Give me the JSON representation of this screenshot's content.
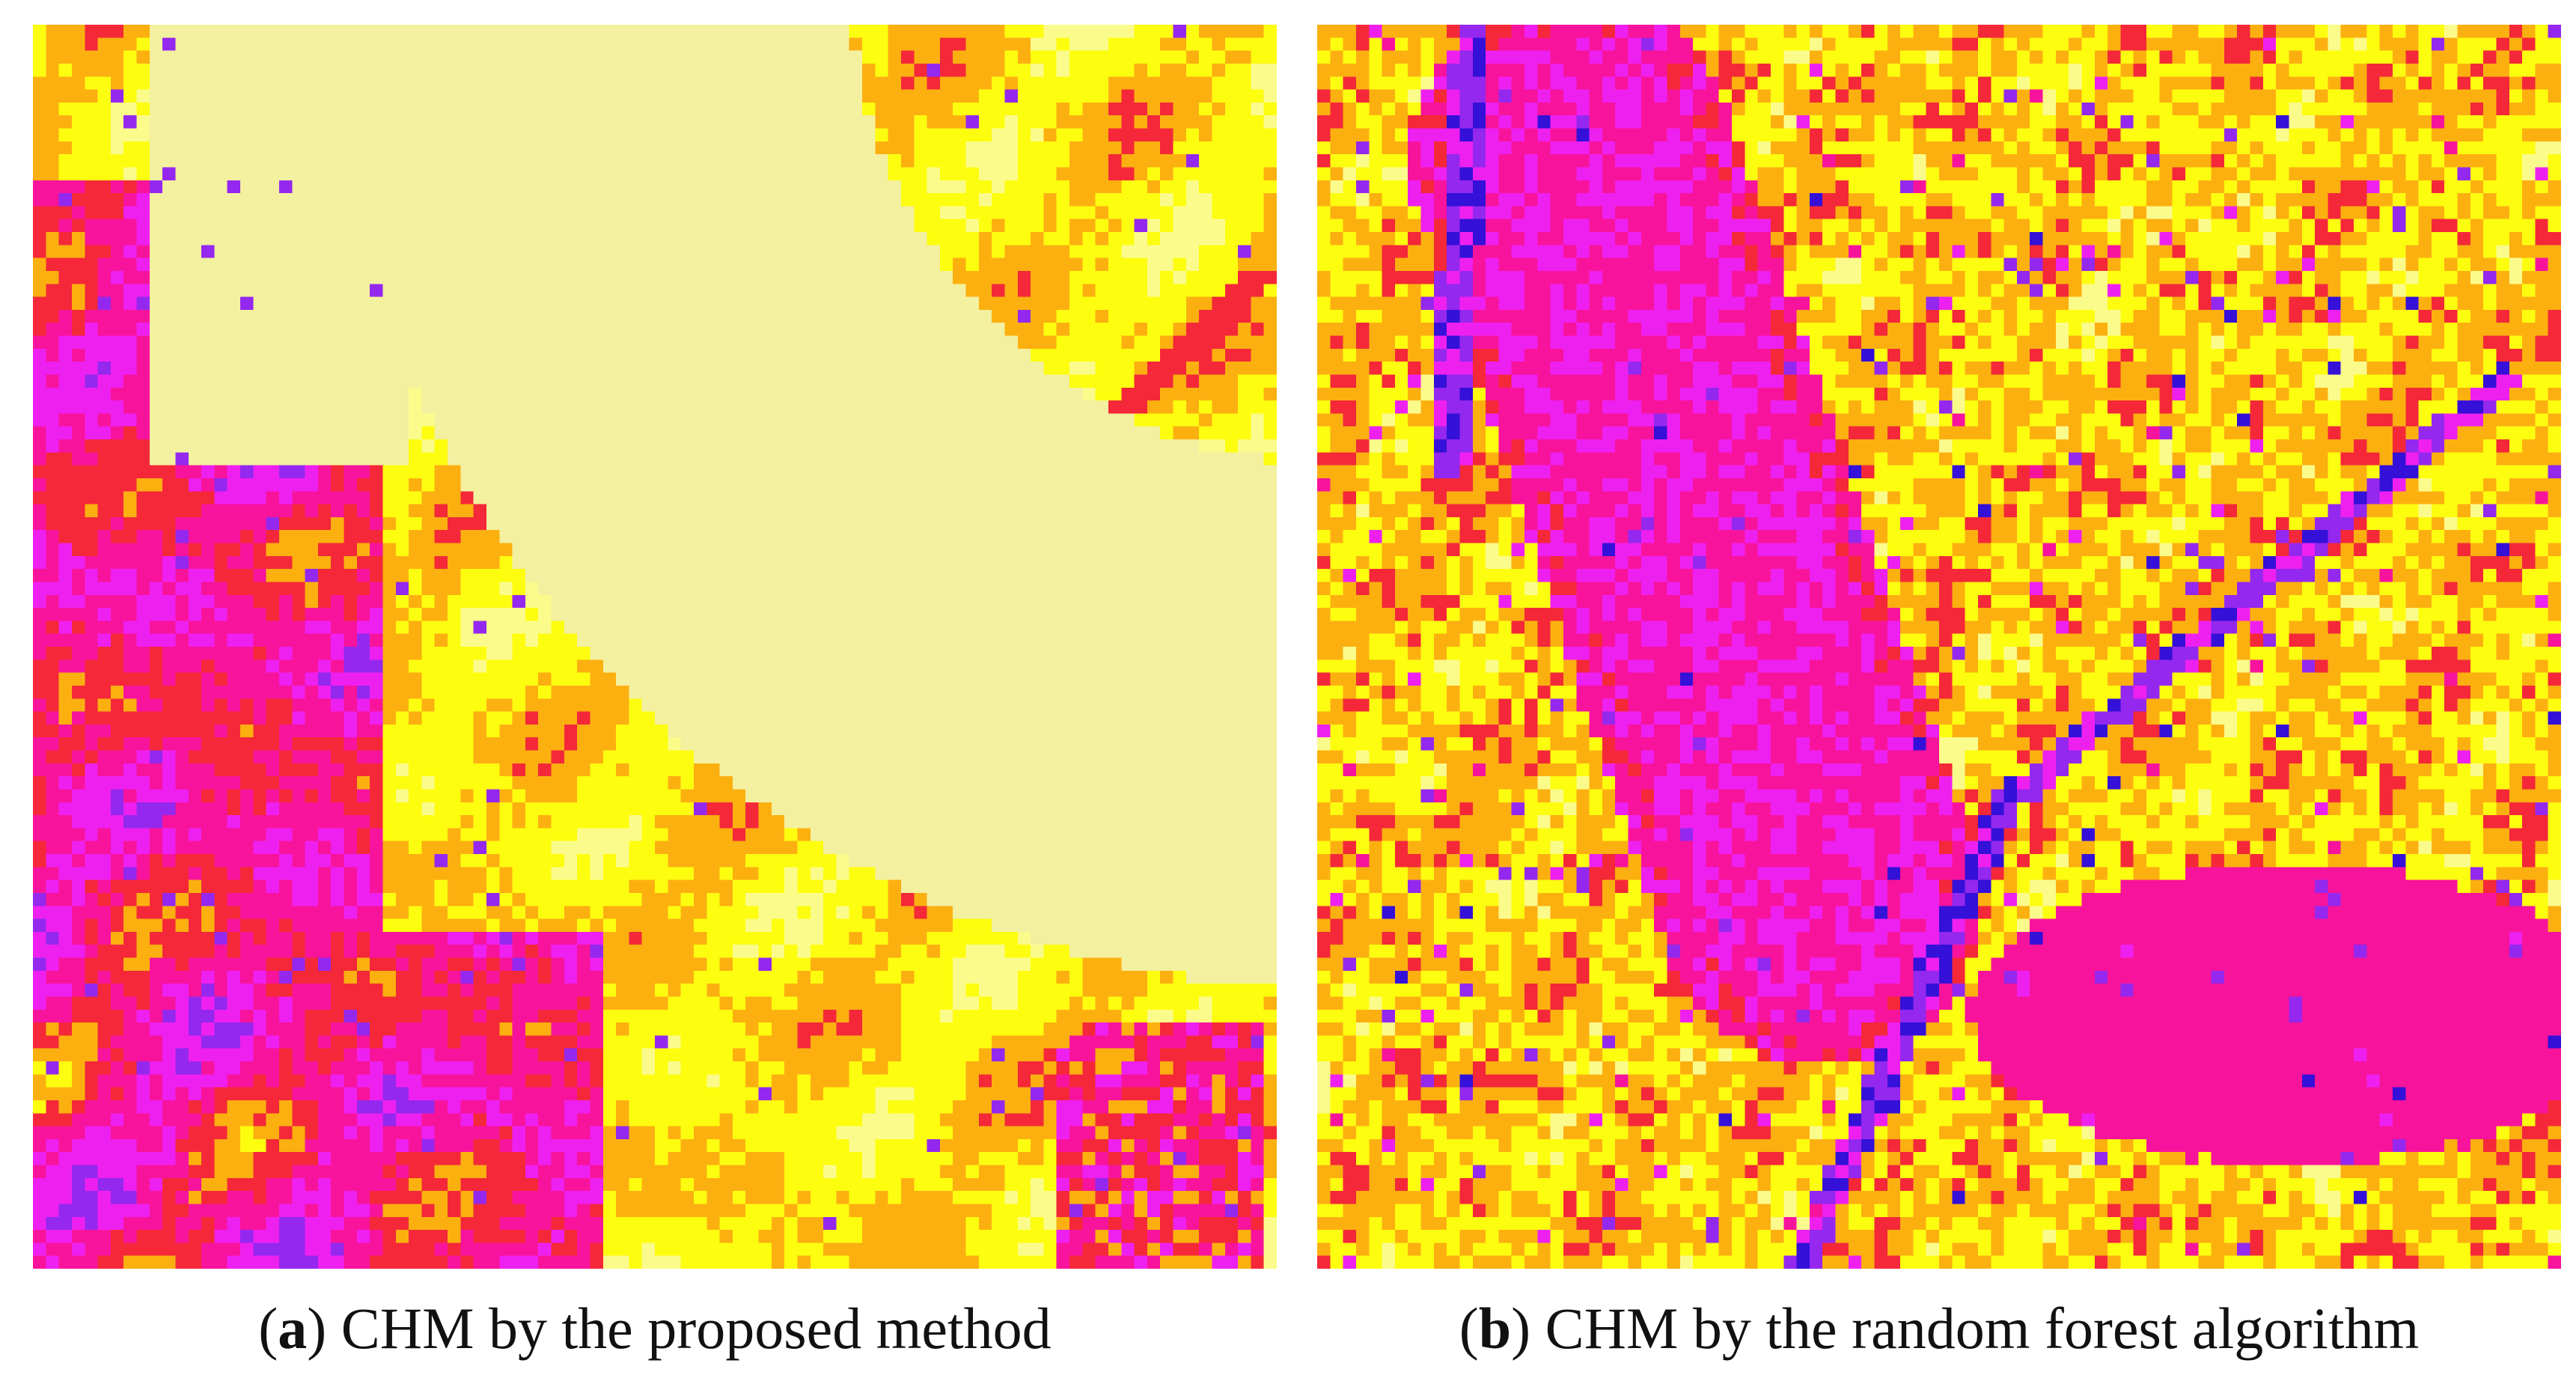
{
  "figure": {
    "panels": [
      {
        "letter": "a",
        "caption_text": "CHM by the proposed method",
        "visual": "pixelated canopy height map, pale yellow curved band (water) through center, magenta/red/orange canopy on left and bottom"
      },
      {
        "letter": "b",
        "caption_text": "CHM by the random forest algorithm",
        "visual": "noisy pixelated canopy height map, large magenta patch top-left to center, second magenta patch bottom-right, thin blue/purple diagonal lines"
      }
    ]
  },
  "palette": {
    "pale": "#f3f0a0",
    "light_yellow": "#fbfb8c",
    "yellow": "#fdfd10",
    "orange": "#fcb010",
    "red": "#f42838",
    "magenta": "#f8139c",
    "fuchsia": "#ee20f0",
    "purple": "#9428ee",
    "blue": "#3410d8"
  }
}
